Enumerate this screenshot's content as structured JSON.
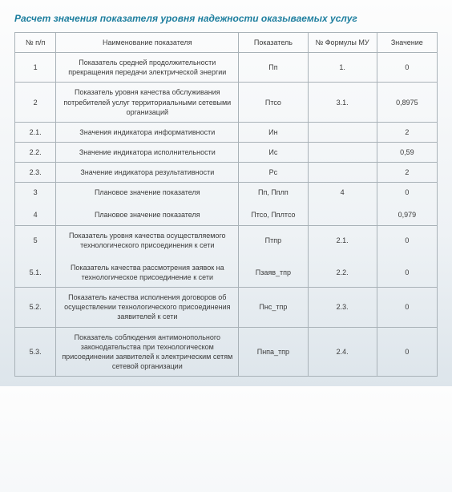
{
  "title": "Расчет значения показателя уровня надежности оказываемых услуг",
  "columns": {
    "num": "№ п/п",
    "name": "Наименование показателя",
    "indicator": "Показатель",
    "formula": "№ Формулы МУ",
    "value": "Значение"
  },
  "rows": [
    {
      "group": 0,
      "num": "1",
      "name": "Показатель средней продолжительности прекращения передачи электрической энергии",
      "indicator": "Пп",
      "formula": "1.",
      "value": "0"
    },
    {
      "group": 1,
      "num": "2",
      "name": "Показатель уровня качества обслуживания потребителей услуг территориальными сетевыми организаций",
      "indicator": "Птсо",
      "formula": "3.1.",
      "value": "0,8975"
    },
    {
      "group": 2,
      "num": "2.1.",
      "name": "Значения индикатора информативности",
      "indicator": "Ин",
      "formula": "",
      "value": "2"
    },
    {
      "group": 3,
      "num": "2.2.",
      "name": "Значение индикатора исполнительности",
      "indicator": "Ис",
      "formula": "",
      "value": "0,59"
    },
    {
      "group": 4,
      "num": "2.3.",
      "name": "Значение индикатора результативности",
      "indicator": "Рс",
      "formula": "",
      "value": "2"
    },
    {
      "group": 5,
      "num": "3",
      "name": "Плановое значение показателя",
      "indicator": "Пп, Пплп",
      "formula": "4",
      "value": "0"
    },
    {
      "group": 5,
      "num": "4",
      "name": "Плановое значение показателя",
      "indicator": "Птсо, Пплтсо",
      "formula": "",
      "value": "0,979"
    },
    {
      "group": 6,
      "num": "5",
      "name": "Показатель уровня качества осуществляемого технологического присоединения к сети",
      "indicator": "Птпр",
      "formula": "2.1.",
      "value": "0"
    },
    {
      "group": 6,
      "num": "5.1.",
      "name": "Показатель качества рассмотрения заявок на технологическое присоединение к сети",
      "indicator": "Пзаяв_тпр",
      "formula": "2.2.",
      "value": "0"
    },
    {
      "group": 7,
      "num": "5.2.",
      "name": "Показатель качества исполнения договоров об осуществлении технологического присоединения заявителей к сети",
      "indicator": "Пнс_тпр",
      "formula": "2.3.",
      "value": "0"
    },
    {
      "group": 8,
      "num": "5.3.",
      "name": "Показатель соблюдения антимонопольного законодательства при технологическом присоединении заявителей к электрическим сетям сетевой организации",
      "indicator": "Пнпа_тпр",
      "formula": "2.4.",
      "value": "0"
    }
  ],
  "style": {
    "title_color": "#1f7f9f",
    "border_color": "#a9b2b8",
    "text_color": "#3a3a3a",
    "font_size_title": 12,
    "font_size_cell": 9,
    "col_widths": {
      "num": 38,
      "name": 200,
      "indicator": 70,
      "formula": 70,
      "value": 60
    }
  }
}
